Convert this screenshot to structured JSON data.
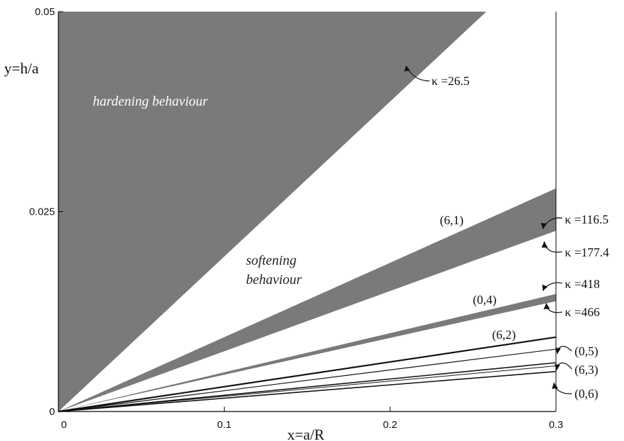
{
  "chart_data": {
    "type": "area",
    "xlabel": "x=a/R",
    "ylabel": "y=h/a",
    "xlim": [
      0,
      0.3
    ],
    "ylim": [
      0,
      0.05
    ],
    "x_ticks": [
      "0",
      "0.1",
      "0.2",
      "0.3"
    ],
    "y_ticks": [
      "0",
      "0.025",
      "0.05"
    ],
    "grid": false,
    "regions": [
      {
        "label": "hardening behaviour",
        "upper_x": [
          0,
          0.258
        ],
        "upper_y": [
          0,
          0.05
        ],
        "boundary_slope": 0.1939,
        "color": "#7a7a7a"
      },
      {
        "label": "(6,1)",
        "x_end": 0.3,
        "upper_y_end": 0.0279,
        "lower_y_end": 0.0226,
        "color": "#7a7a7a"
      },
      {
        "label": "(0,4)",
        "x_end": 0.3,
        "upper_y_end": 0.0147,
        "lower_y_end": 0.0138,
        "color": "#7a7a7a"
      }
    ],
    "lines": [
      {
        "label": "(6,2)",
        "x": [
          0,
          0.3
        ],
        "y": [
          0,
          0.0093
        ],
        "width": 2.2
      },
      {
        "label": "(0,5)",
        "x": [
          0,
          0.3
        ],
        "y": [
          0,
          0.0078
        ],
        "width": 1.2
      },
      {
        "label": "(6,3)",
        "x": [
          0,
          0.3
        ],
        "y": [
          0,
          0.0061
        ],
        "width": 1.6
      },
      {
        "label": "(6,3)",
        "x": [
          0,
          0.3
        ],
        "y": [
          0,
          0.0057
        ],
        "width": 1.0
      },
      {
        "label": "(0,6)",
        "x": [
          0,
          0.3
        ],
        "y": [
          0,
          0.005
        ],
        "width": 1.6
      }
    ],
    "annotations": [
      {
        "text": "hardening behaviour",
        "kind": "region"
      },
      {
        "text": "softening",
        "kind": "region"
      },
      {
        "text": "behaviour",
        "kind": "region"
      },
      {
        "text": "κ =26.5"
      },
      {
        "text": "κ =116.5"
      },
      {
        "text": "κ =177.4"
      },
      {
        "text": "κ =418"
      },
      {
        "text": "κ =466"
      },
      {
        "text": "(6,1)"
      },
      {
        "text": "(0,4)"
      },
      {
        "text": "(6,2)"
      },
      {
        "text": "(0,5)"
      },
      {
        "text": "(6,3)"
      },
      {
        "text": "(0,6)"
      }
    ]
  }
}
